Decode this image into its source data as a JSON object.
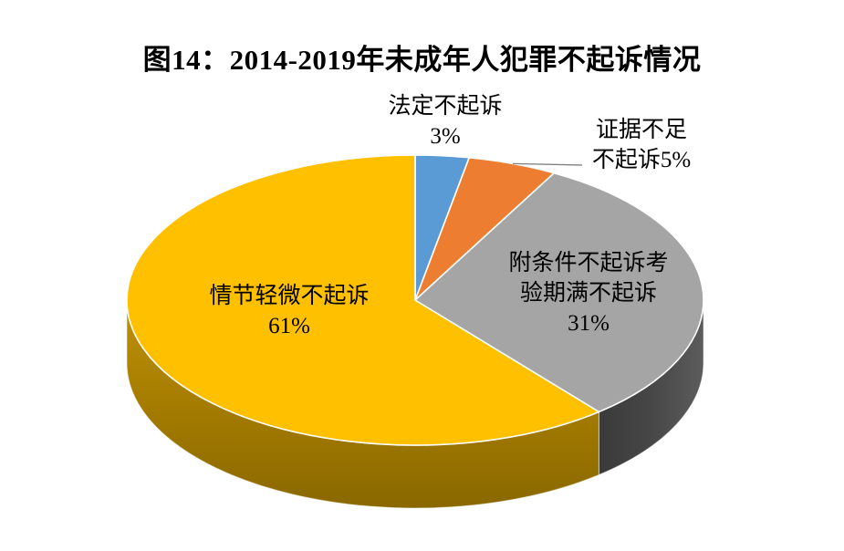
{
  "title": "图14：2014-2019年未成年人犯罪不起诉情况",
  "background_color": "#FFFFFF",
  "text_color": "#000000",
  "leader_line_color": "#7F7F7F",
  "chart_data": {
    "type": "pie",
    "style": "3d-pie",
    "title": "图14：2014-2019年未成年人犯罪不起诉情况",
    "start_angle_deg": 0,
    "direction": "clockwise",
    "legend": "none",
    "slices": [
      {
        "label": "法定不起诉",
        "value_pct": 3,
        "color": "#5B9BD5",
        "label_lines": [
          "法定不起诉",
          "3%"
        ]
      },
      {
        "label": "证据不足不起诉",
        "value_pct": 5,
        "color": "#ED7D31",
        "leader_line": true,
        "label_lines": [
          "证据不足",
          "不起诉5%"
        ]
      },
      {
        "label": "附条件不起诉考验期满不起诉",
        "value_pct": 31,
        "color": "#A5A5A5",
        "side": {
          "dir": "h",
          "stops": [
            "#3A3A3A",
            "#474747",
            "#5C5C5C"
          ]
        },
        "label_lines": [
          "附条件不起诉考",
          "验期满不起诉",
          "31%"
        ]
      },
      {
        "label": "情节轻微不起诉",
        "value_pct": 61,
        "color": "#FFC000",
        "side": {
          "dir": "v",
          "stops": [
            "#C0920A",
            "#A57C00",
            "#8A6800"
          ]
        },
        "label_lines": [
          "情节轻微不起诉",
          "61%"
        ]
      }
    ]
  }
}
